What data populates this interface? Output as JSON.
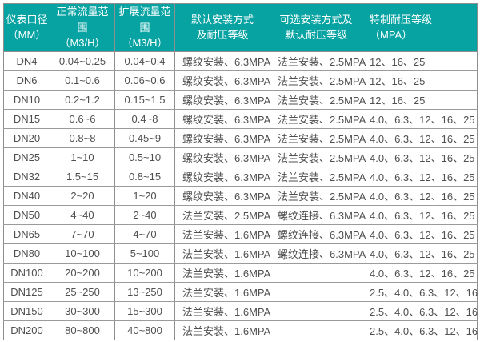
{
  "colors": {
    "accent_teal": "#06a3a2",
    "header_text": "#ffffff",
    "body_text": "#4f4f4f",
    "border": "#8e8e8e",
    "background": "#ffffff"
  },
  "table": {
    "header": {
      "columns": [
        {
          "line1": "仪表口径",
          "line2": "（MM）"
        },
        {
          "line1": "正常流量范围",
          "line2": "（M3/H）"
        },
        {
          "line1": "扩展流量范围",
          "line2": "（M3/H）"
        },
        {
          "line1": "默认安装方式",
          "line2": "及耐压等级"
        },
        {
          "line1": "可选安装方式及",
          "line2": "默认耐压等级"
        },
        {
          "line1": "特制耐压等级",
          "line2": "（MPA）"
        }
      ]
    },
    "rows": [
      [
        "DN4",
        "0.04~0.25",
        "0.04~0.4",
        "螺纹安装、6.3MPA",
        "法兰安装、2.5MPA",
        "12、16、25"
      ],
      [
        "DN6",
        "0.1~0.6",
        "0.06~0.6",
        "螺纹安装、6.3MPA",
        "法兰安装、2.5MPA",
        "12、16、25"
      ],
      [
        "DN10",
        "0.2~1.2",
        "0.15~1.5",
        "螺纹安装、6.3MPA",
        "法兰安装、2.5MPA",
        "12、16、25"
      ],
      [
        "DN15",
        "0.6~6",
        "0.4~8",
        "螺纹安装、6.3MPA",
        "法兰安装、2.5MPA",
        "4.0、6.3、12、16、25"
      ],
      [
        "DN20",
        "0.8~8",
        "0.45~9",
        "螺纹安装、6.3MPA",
        "法兰安装、2.5MPA",
        "4.0、6.3、12、16、25"
      ],
      [
        "DN25",
        "1~10",
        "0.5~10",
        "螺纹安装、6.3MPA",
        "法兰安装、2.5MPA",
        "4.0、6.3、12、16、25"
      ],
      [
        "DN32",
        "1.5~15",
        "0.8~15",
        "螺纹安装、6.3MPA",
        "法兰安装、2.5MPA",
        "4.0、6.3、12、16、25"
      ],
      [
        "DN40",
        "2~20",
        "1~20",
        "螺纹安装、6.3MPA",
        "法兰安装、2.5MPA",
        "4.0、6.3、12、16、25"
      ],
      [
        "DN50",
        "4~40",
        "2~40",
        "法兰安装、2.5MPA",
        "螺纹连接、6.3MPA",
        "4.0、6.3、12、16、25"
      ],
      [
        "DN65",
        "7~70",
        "4~70",
        "法兰安装、1.6MPA",
        "螺纹连接、6.3MPA",
        "4.0、6.3、12、16、25"
      ],
      [
        "DN80",
        "10~100",
        "5~100",
        "法兰安装、1.6MPA",
        "螺纹连接、6.3MPA",
        "4.0、6.3、12、16、25"
      ],
      [
        "DN100",
        "20~200",
        "10~200",
        "法兰安装、1.6MPA",
        "",
        "4.0、6.3、12、16、25"
      ],
      [
        "DN125",
        "25~250",
        "13~250",
        "法兰安装、1.6MPA",
        "",
        "2.5、4.0、6.3、12、16"
      ],
      [
        "DN150",
        "30~300",
        "15~300",
        "法兰安装、1.6MPA",
        "",
        "2.5、4.0、6.3、12、16"
      ],
      [
        "DN200",
        "80~800",
        "40~800",
        "法兰安装、1.6MPA",
        "",
        "2.5、4.0、6.3、12、16"
      ]
    ]
  }
}
